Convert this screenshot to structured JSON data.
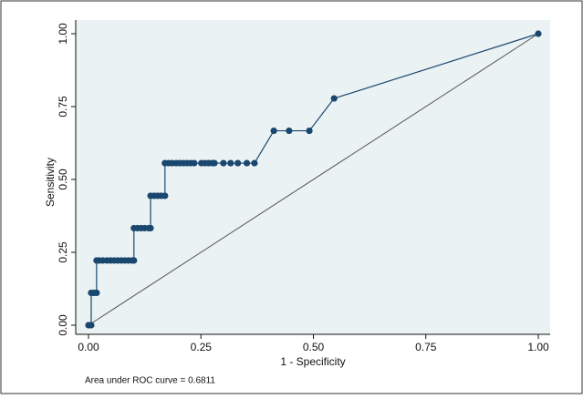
{
  "chart_data": {
    "type": "line",
    "x": [
      0,
      0.006,
      0.006,
      0.012,
      0.018,
      0.018,
      0.024,
      0.032,
      0.041,
      0.049,
      0.057,
      0.065,
      0.073,
      0.081,
      0.089,
      0.097,
      0.101,
      0.101,
      0.109,
      0.117,
      0.125,
      0.134,
      0.138,
      0.138,
      0.146,
      0.154,
      0.162,
      0.17,
      0.17,
      0.178,
      0.186,
      0.195,
      0.203,
      0.211,
      0.219,
      0.227,
      0.235,
      0.251,
      0.259,
      0.267,
      0.275,
      0.28,
      0.3,
      0.316,
      0.332,
      0.352,
      0.369,
      0.412,
      0.446,
      0.491,
      0.546,
      1
    ],
    "series": [
      {
        "color": "#1a476f",
        "values": [
          0,
          0,
          0.111,
          0.111,
          0.111,
          0.222,
          0.222,
          0.222,
          0.222,
          0.222,
          0.222,
          0.222,
          0.222,
          0.222,
          0.222,
          0.222,
          0.222,
          0.333,
          0.333,
          0.333,
          0.333,
          0.333,
          0.333,
          0.444,
          0.444,
          0.444,
          0.444,
          0.444,
          0.556,
          0.556,
          0.556,
          0.556,
          0.556,
          0.556,
          0.556,
          0.556,
          0.556,
          0.556,
          0.556,
          0.556,
          0.556,
          0.556,
          0.556,
          0.556,
          0.556,
          0.556,
          0.556,
          0.667,
          0.667,
          0.667,
          0.778,
          1
        ]
      }
    ],
    "reference": {
      "x": [
        0,
        1
      ],
      "y": [
        0,
        1
      ],
      "color": "#555555"
    },
    "xlabel": "1 - Specificity",
    "ylabel": "Sensitivity",
    "note": "Area under ROC curve = 0.6811",
    "xlim": [
      0,
      1
    ],
    "ylim": [
      0,
      1
    ],
    "xticks": [
      {
        "value": 0,
        "label": "0.00"
      },
      {
        "value": 0.25,
        "label": "0.25"
      },
      {
        "value": 0.5,
        "label": "0.50"
      },
      {
        "value": 0.75,
        "label": "0.75"
      },
      {
        "value": 1,
        "label": "1.00"
      }
    ],
    "yticks": [
      {
        "value": 0,
        "label": "0.00"
      },
      {
        "value": 0.25,
        "label": "0.25"
      },
      {
        "value": 0.5,
        "label": "0.50"
      },
      {
        "value": 0.75,
        "label": "0.75"
      },
      {
        "value": 1,
        "label": "1.00"
      }
    ]
  }
}
